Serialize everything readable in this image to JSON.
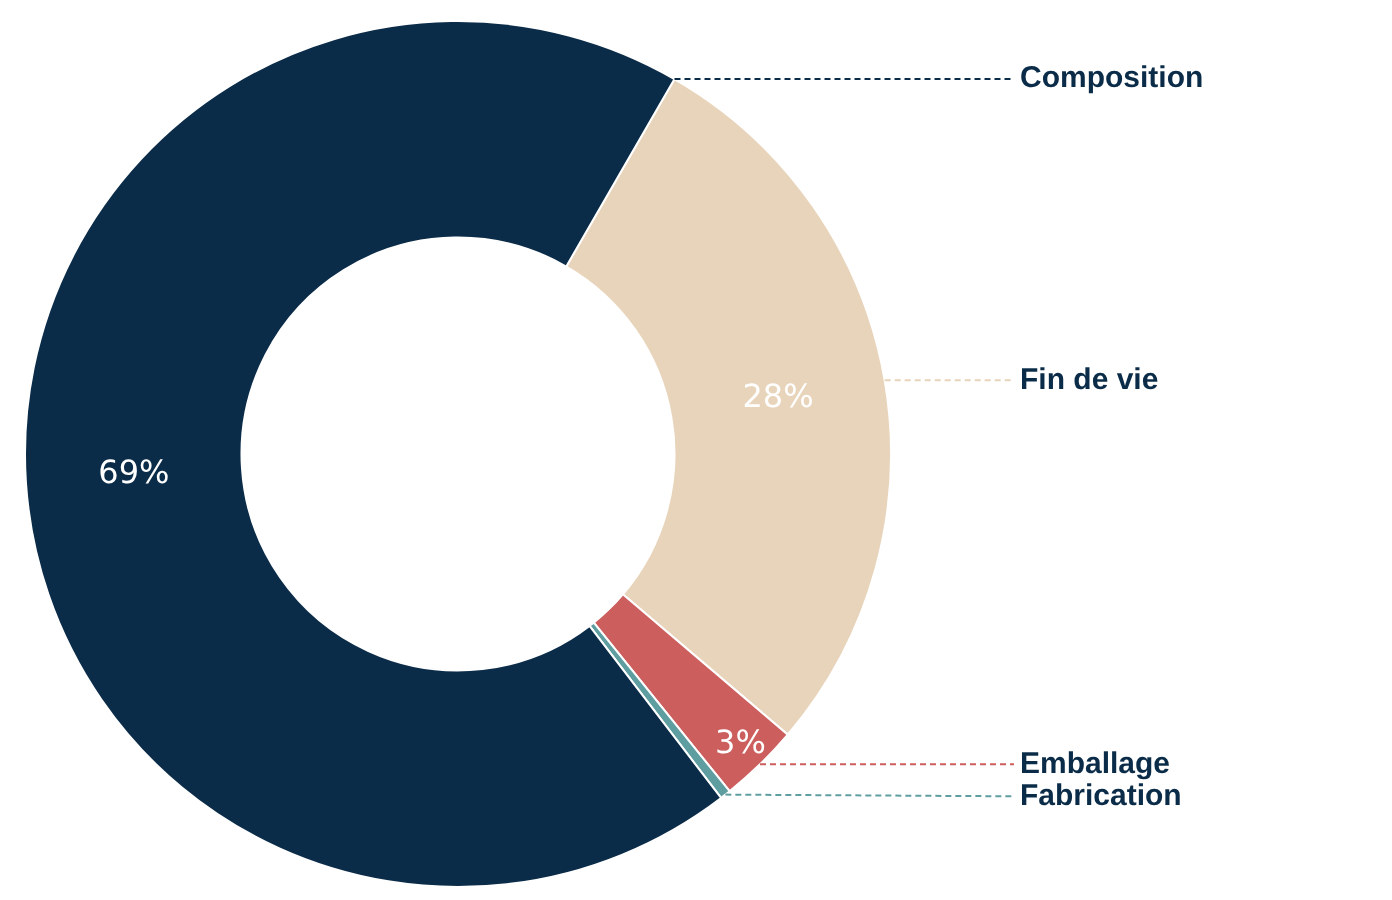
{
  "chart_data": {
    "type": "donut",
    "categories": [
      "Fin de vie",
      "Emballage",
      "Fabrication",
      "Composition"
    ],
    "values": [
      28,
      3,
      0.4,
      69
    ],
    "colors": [
      "#e8d4bb",
      "#cc5f5e",
      "#5f9ea0",
      "#0b2c48"
    ],
    "value_labels": [
      "28%",
      "3%",
      null,
      "69%"
    ],
    "legend": false
  }
}
